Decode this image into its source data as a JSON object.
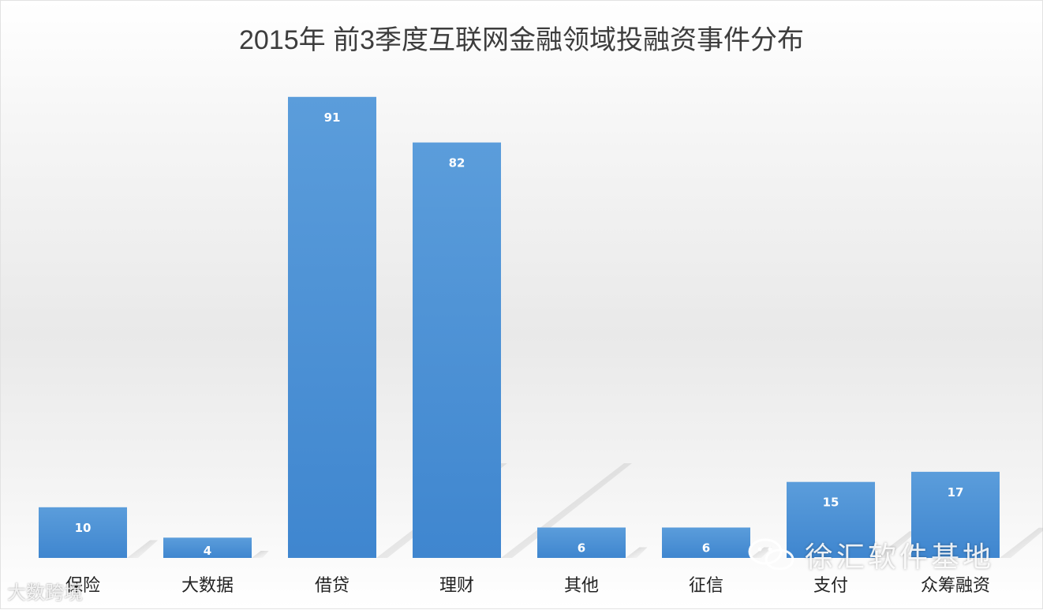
{
  "chart_data": {
    "type": "bar",
    "title": "2015年 前3季度互联网金融领域投融资事件分布",
    "categories": [
      "保险",
      "大数据",
      "借贷",
      "理财",
      "其他",
      "征信",
      "支付",
      "众筹融资"
    ],
    "values": [
      10,
      4,
      91,
      82,
      6,
      6,
      15,
      17
    ],
    "data_labels": [
      "10",
      "4",
      "91",
      "82",
      "6",
      "6",
      "15",
      "17"
    ],
    "xlabel": "",
    "ylabel": "",
    "ylim": [
      0,
      100
    ],
    "grid": false,
    "legend": "none",
    "bar_color": "#4a8fd3"
  },
  "watermarks": {
    "left": "大数跨境",
    "right": "徐汇软件基地",
    "right_icon": "wechat-icon"
  }
}
